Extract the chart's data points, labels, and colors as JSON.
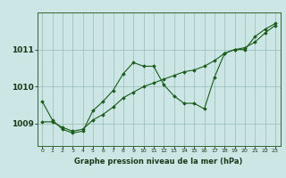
{
  "bg_color": "#cce5e5",
  "grid_color": "#99bbbb",
  "line_color": "#1a5c1a",
  "title": "Graphe pression niveau de la mer (hPa)",
  "xlim": [
    -0.5,
    23.5
  ],
  "ylim": [
    1008.4,
    1012.0
  ],
  "yticks": [
    1009,
    1010,
    1011
  ],
  "xticks": [
    0,
    1,
    2,
    3,
    4,
    5,
    6,
    7,
    8,
    9,
    10,
    11,
    12,
    13,
    14,
    15,
    16,
    17,
    18,
    19,
    20,
    21,
    22,
    23
  ],
  "pressure_data": [
    1009.6,
    1009.1,
    1008.85,
    1008.75,
    1008.8,
    1009.35,
    1009.6,
    1009.9,
    1010.35,
    1010.65,
    1010.55,
    1010.55,
    1010.05,
    1009.75,
    1009.55,
    1009.55,
    1009.4,
    1010.25,
    1010.9,
    1011.0,
    1011.0,
    1011.35,
    1011.55,
    1011.7
  ],
  "trend_data": [
    1009.05,
    1009.05,
    1008.9,
    1008.8,
    1008.85,
    1009.1,
    1009.25,
    1009.45,
    1009.7,
    1009.85,
    1010.0,
    1010.1,
    1010.2,
    1010.3,
    1010.4,
    1010.45,
    1010.55,
    1010.7,
    1010.9,
    1011.0,
    1011.05,
    1011.2,
    1011.45,
    1011.65
  ]
}
